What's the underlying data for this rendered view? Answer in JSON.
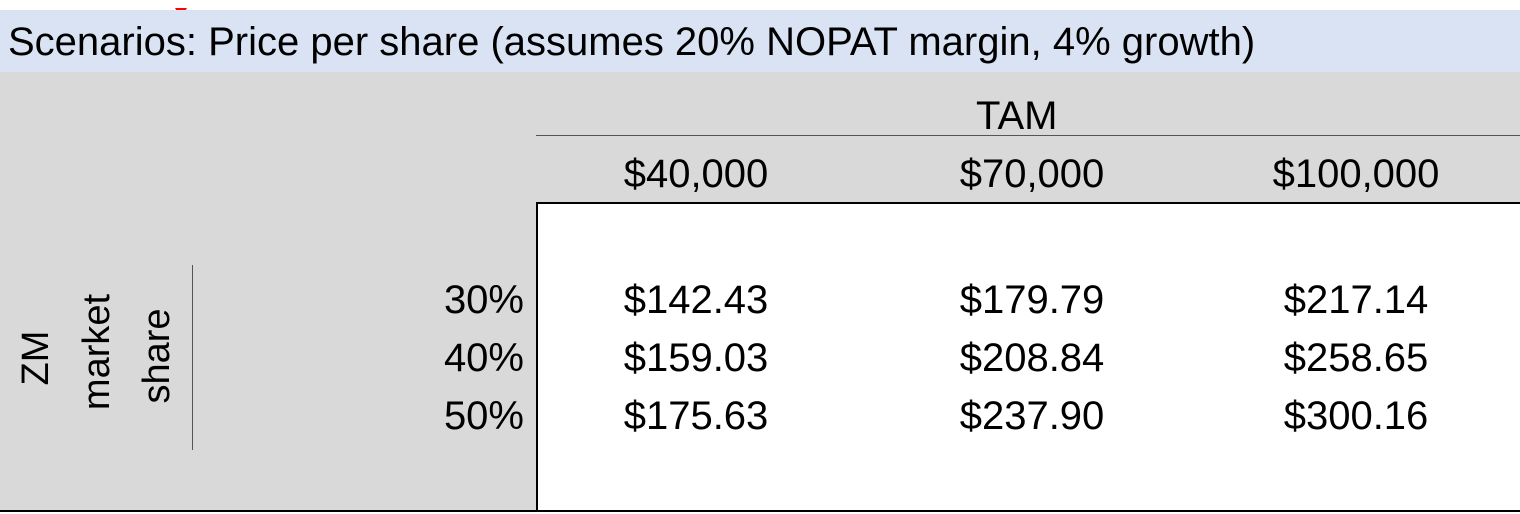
{
  "caption": "Scenarios: Price per share (assumes 20% NOPAT margin, 4% growth)",
  "col_group_label": "TAM",
  "columns": [
    "$40,000",
    "$70,000",
    "$100,000"
  ],
  "row_group_label": [
    "ZM",
    "market",
    "share"
  ],
  "rows": [
    {
      "label": "30%",
      "values": [
        "$142.43",
        "$179.79",
        "$217.14"
      ]
    },
    {
      "label": "40%",
      "values": [
        "$159.03",
        "$208.84",
        "$258.65"
      ]
    },
    {
      "label": "50%",
      "values": [
        "$175.63",
        "$237.90",
        "$300.16"
      ]
    }
  ],
  "colors": {
    "title_band": "#dae3f3",
    "header_gray": "#d9d9d9",
    "comment_marker": "#ff0000"
  }
}
